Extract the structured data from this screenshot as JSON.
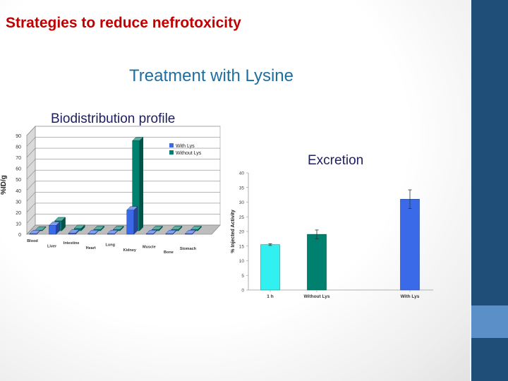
{
  "slide": {
    "title": "Strategies to reduce nefrotoxicity",
    "subtitle": "Treatment with Lysine",
    "biodistribution_label": "Biodistribution profile",
    "excretion_label": "Excretion"
  },
  "colors": {
    "title": "#c00000",
    "subtitle": "#1f6ea0",
    "side_strip": "#1f4e79",
    "with_lys": "#3a6ae8",
    "without_lys": "#00806e",
    "one_h": "#33f0f0"
  },
  "chart_data": [
    {
      "type": "bar",
      "style": "3d-clustered",
      "ylabel": "%ID/g",
      "ylim": [
        0,
        90
      ],
      "yticks": [
        "0",
        "10",
        "20",
        "30",
        "40",
        "50",
        "60",
        "70",
        "80",
        "90"
      ],
      "categories": [
        "Blood",
        "Liver",
        "Intestine",
        "Heart",
        "Lung",
        "Kidney",
        "Muscle",
        "Bone",
        "Stomach"
      ],
      "series": [
        {
          "name": "With Lys",
          "color": "#3a6ae8",
          "values": [
            0.5,
            8,
            1,
            0.5,
            0.5,
            22,
            0.5,
            0.5,
            0.5
          ]
        },
        {
          "name": "Without Lys",
          "color": "#00806e",
          "values": [
            0.5,
            9,
            2,
            1,
            1,
            82,
            1,
            1,
            1
          ]
        }
      ],
      "legend_position": "top-right",
      "grid": true
    },
    {
      "type": "bar",
      "ylabel": "% Injected Activity",
      "ylim": [
        0,
        40
      ],
      "yticks": [
        "0",
        "5",
        "10",
        "15",
        "20",
        "25",
        "30",
        "35",
        "40"
      ],
      "categories": [
        "1 h",
        "Without Lys",
        "With Lys"
      ],
      "values": [
        15.5,
        19,
        31
      ],
      "errors": [
        0.3,
        1.5,
        3.2
      ],
      "colors": [
        "#33f0f0",
        "#00806e",
        "#3a6ae8"
      ],
      "grid": false
    }
  ]
}
